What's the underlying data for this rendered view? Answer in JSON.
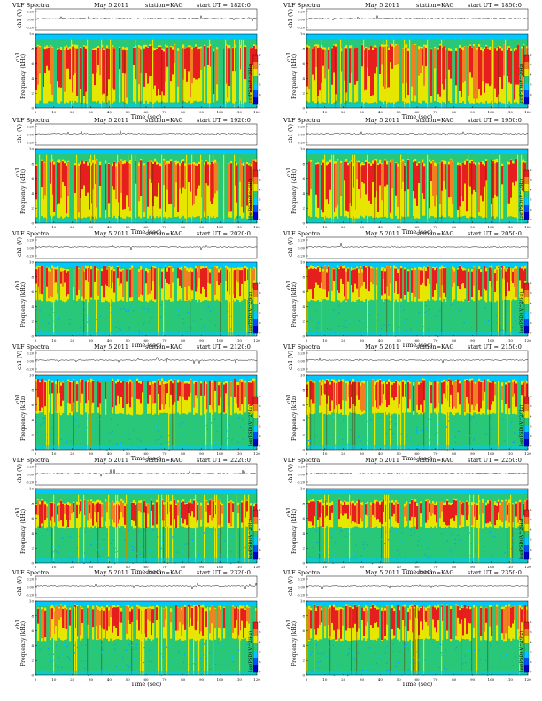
{
  "page": {
    "header": {
      "title": "VLF Spectra",
      "date": "May 5 2011",
      "station": "station=KAG",
      "start_prefix": "start UT ="
    },
    "labels": {
      "ch1_top": "ch1 (V)",
      "ch1_side": "ch1",
      "ylabel": "Frequency (kHz)",
      "xlabel": "Time (sec)",
      "colorbar": "log(PSD)(V^2/Hz)"
    },
    "panel_times": [
      "1820:0",
      "1850:0",
      "1920:0",
      "1950:0",
      "2020:0",
      "2050:0",
      "2120:0",
      "2150:0",
      "2220:0",
      "2250:0",
      "2320:0",
      "2350:0"
    ]
  },
  "chart_data": {
    "type": "heatmap",
    "description_units": "frequency-time spectrogram panels with waveform strip",
    "colors": {
      "low": "#0000c8",
      "mid_low": "#00c8ff",
      "mid": "#28c878",
      "mid_high": "#e6e600",
      "high": "#e61e1e",
      "waveform": "#000000"
    },
    "waveform_axis": {
      "ylabel": "ch1 (V)",
      "yticks": [
        "0.20",
        "0.00",
        "-0.20"
      ],
      "ylim": [
        -0.2,
        0.2
      ]
    },
    "spectrogram_axis": {
      "xlabel": "Time (sec)",
      "xlim": [
        0,
        120
      ],
      "xticks": [
        "0",
        "10",
        "20",
        "30",
        "40",
        "50",
        "60",
        "70",
        "80",
        "90",
        "100",
        "110",
        "120"
      ],
      "ylabel": "Frequency (kHz)",
      "ylim": [
        0,
        10
      ],
      "yticks": [
        "0",
        "2",
        "4",
        "6",
        "8",
        "10"
      ]
    },
    "colorbar": {
      "label": "log(PSD)(V^2/Hz)",
      "ticks": [
        "-2",
        "-3",
        "-4",
        "-5",
        "-6",
        "-7"
      ]
    },
    "panels": [
      {
        "start_ut": "1820:0",
        "red_band_khz": [
          1,
          8
        ]
      },
      {
        "start_ut": "1850:0",
        "red_band_khz": [
          1,
          8
        ]
      },
      {
        "start_ut": "1920:0",
        "red_band_khz": [
          1,
          8
        ]
      },
      {
        "start_ut": "1950:0",
        "red_band_khz": [
          1,
          8
        ]
      },
      {
        "start_ut": "2020:0",
        "red_band_khz": [
          5,
          9
        ]
      },
      {
        "start_ut": "2050:0",
        "red_band_khz": [
          5,
          9
        ]
      },
      {
        "start_ut": "2120:0",
        "red_band_khz": [
          5,
          9
        ]
      },
      {
        "start_ut": "2150:0",
        "red_band_khz": [
          5,
          9
        ]
      },
      {
        "start_ut": "2220:0",
        "red_band_khz": [
          5,
          8
        ]
      },
      {
        "start_ut": "2250:0",
        "red_band_khz": [
          5,
          8
        ]
      },
      {
        "start_ut": "2320:0",
        "red_band_khz": [
          5,
          9
        ]
      },
      {
        "start_ut": "2350:0",
        "red_band_khz": [
          5,
          9
        ]
      }
    ]
  }
}
